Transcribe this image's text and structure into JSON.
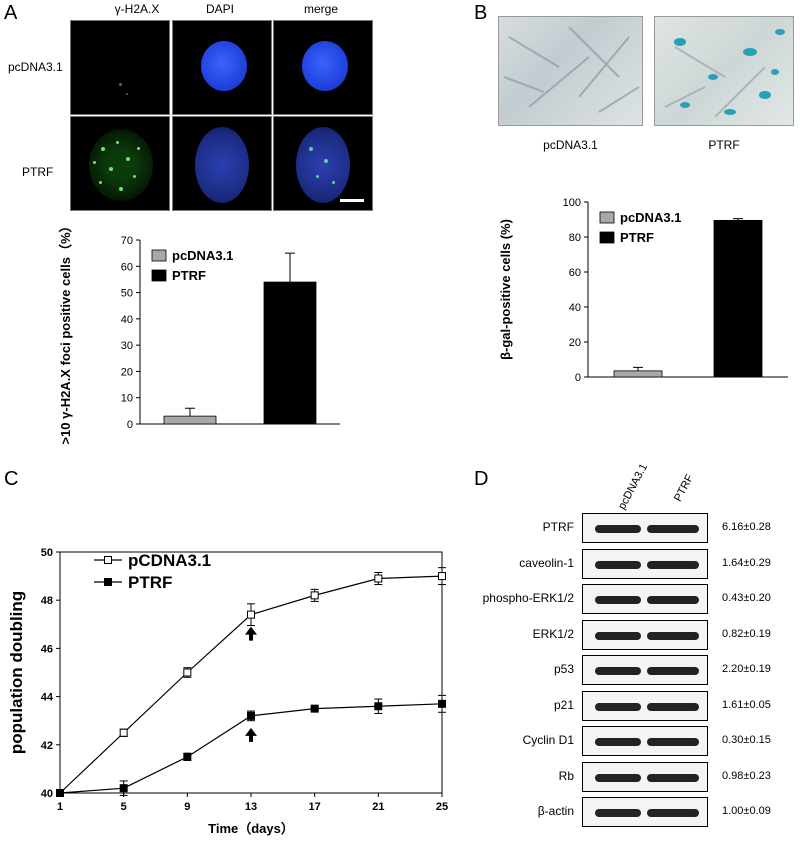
{
  "panels": {
    "a": "A",
    "b": "B",
    "c": "C",
    "d": "D"
  },
  "micrograph": {
    "col_labels": [
      "γ-H2A.X",
      "DAPI",
      "merge"
    ],
    "row_labels": [
      "pcDNA3.1",
      "PTRF"
    ]
  },
  "sa_photos": {
    "labels": [
      "pcDNA3.1",
      "PTRF"
    ]
  },
  "colors": {
    "control": "#a8a8a8",
    "ptrf": "#000000",
    "dapi": "#1e46e6",
    "gfoci": "#3cd23c",
    "sa_blue": "#2aa0b8"
  },
  "chart_data": [
    {
      "id": "A",
      "type": "bar",
      "ylabel": ">10 γ-H2A.X foci positive cells（%）",
      "categories": [
        "pcDNA3.1",
        "PTRF"
      ],
      "series": [
        {
          "name": "pcDNA3.1",
          "value": 3,
          "error": 3
        },
        {
          "name": "PTRF",
          "value": 54,
          "error": 11
        }
      ],
      "ylim": [
        0,
        70
      ],
      "yticks": [
        0,
        10,
        20,
        30,
        40,
        50,
        60,
        70
      ],
      "legend": "top-left"
    },
    {
      "id": "B",
      "type": "bar",
      "ylabel": "β-gal-positive cells (%)",
      "categories": [
        "pcDNA3.1",
        "PTRF"
      ],
      "series": [
        {
          "name": "pcDNA3.1",
          "value": 3.5,
          "error": 2
        },
        {
          "name": "PTRF",
          "value": 89.5,
          "error": 1
        }
      ],
      "ylim": [
        0,
        100
      ],
      "yticks": [
        0,
        20,
        40,
        60,
        80,
        100
      ],
      "legend": "top-left"
    },
    {
      "id": "C",
      "type": "line",
      "xlabel": "Time（days）",
      "ylabel": "population doubling",
      "x": [
        1,
        5,
        9,
        13,
        17,
        21,
        25
      ],
      "xticks": [
        1,
        5,
        9,
        13,
        17,
        21,
        25
      ],
      "ylim": [
        40,
        50
      ],
      "yticks": [
        40,
        42,
        44,
        46,
        48,
        50
      ],
      "series": [
        {
          "name": "pCDNA3.1",
          "values": [
            40.0,
            42.5,
            45.0,
            47.4,
            48.2,
            48.9,
            49.0
          ],
          "errors": [
            0,
            0.15,
            0.2,
            0.45,
            0.25,
            0.25,
            0.35
          ],
          "marker": "open-square"
        },
        {
          "name": "PTRF",
          "values": [
            40.0,
            40.2,
            41.5,
            43.2,
            43.5,
            43.6,
            43.7
          ],
          "errors": [
            0,
            0.3,
            0.15,
            0.2,
            0.05,
            0.3,
            0.35
          ],
          "marker": "filled-square"
        }
      ],
      "arrows_at_x": [
        13
      ],
      "legend": "top-left"
    }
  ],
  "western": {
    "col_labels": [
      "pcDNA3.1",
      "PTRF"
    ],
    "rows": [
      {
        "name": "PTRF",
        "value": "6.16±0.28"
      },
      {
        "name": "caveolin-1",
        "value": "1.64±0.29"
      },
      {
        "name": "phospho-ERK1/2",
        "value": "0.43±0.20"
      },
      {
        "name": "ERK1/2",
        "value": "0.82±0.19"
      },
      {
        "name": "p53",
        "value": "2.20±0.19"
      },
      {
        "name": "p21",
        "value": "1.61±0.05"
      },
      {
        "name": "Cyclin D1",
        "value": "0.30±0.15"
      },
      {
        "name": "Rb",
        "value": "0.98±0.23"
      },
      {
        "name": "β-actin",
        "value": "1.00±0.09"
      }
    ]
  }
}
